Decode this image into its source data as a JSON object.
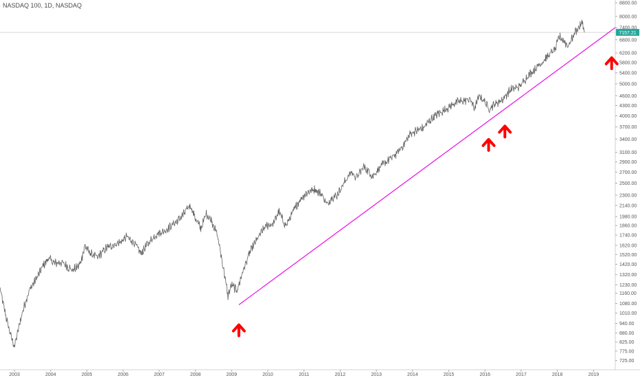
{
  "chart_data": {
    "type": "line",
    "title": "NASDAQ 100, 1D, NASDAQ",
    "y_scale": "log",
    "ylim": [
      700,
      8800
    ],
    "xlim": [
      2002.6,
      2019.6
    ],
    "grid": false,
    "x_ticks": [
      "2003",
      "2004",
      "2005",
      "2006",
      "2007",
      "2008",
      "2009",
      "2010",
      "2011",
      "2012",
      "2013",
      "2014",
      "2015",
      "2016",
      "2017",
      "2018",
      "2019"
    ],
    "y_ticks": [
      "8800.00",
      "8000.00",
      "7400.00",
      "6800.00",
      "6200.00",
      "5800.00",
      "5400.00",
      "5000.00",
      "4600.00",
      "4300.00",
      "4000.00",
      "3700.00",
      "3400.00",
      "3100.00",
      "2900.00",
      "2700.00",
      "2500.00",
      "2300.00",
      "2140.00",
      "1980.00",
      "1860.00",
      "1740.00",
      "1620.00",
      "1520.00",
      "1420.00",
      "1320.00",
      "1230.00",
      "1160.00",
      "1080.00",
      "1010.00",
      "940.00",
      "880.00",
      "825.00",
      "775.00",
      "725.00"
    ],
    "current_price_label": "7157.21",
    "current_price": 7157.21,
    "series": [
      {
        "x": [
          2002.6,
          2002.75,
          2002.9,
          2003.0,
          2003.2,
          2003.4,
          2003.6,
          2003.8,
          2003.95,
          2004.1,
          2004.3,
          2004.5,
          2004.6,
          2004.8,
          2004.95,
          2005.1,
          2005.3,
          2005.5,
          2005.7,
          2005.95,
          2006.1,
          2006.3,
          2006.5,
          2006.7,
          2006.95,
          2007.15,
          2007.4,
          2007.55,
          2007.7,
          2007.85,
          2008.0,
          2008.15,
          2008.3,
          2008.45,
          2008.6,
          2008.75,
          2008.9,
          2009.0,
          2009.15,
          2009.3,
          2009.5,
          2009.7,
          2009.95,
          2010.15,
          2010.3,
          2010.5,
          2010.6,
          2010.75,
          2010.9,
          2011.1,
          2011.3,
          2011.5,
          2011.65,
          2011.75,
          2011.9,
          2012.1,
          2012.3,
          2012.45,
          2012.65,
          2012.8,
          2012.9,
          2013.1,
          2013.3,
          2013.5,
          2013.7,
          2013.95,
          2014.1,
          2014.3,
          2014.5,
          2014.7,
          2014.95,
          2015.2,
          2015.45,
          2015.6,
          2015.7,
          2015.85,
          2016.0,
          2016.1,
          2016.3,
          2016.5,
          2016.7,
          2016.95,
          2017.2,
          2017.5,
          2017.7,
          2017.95,
          2018.05,
          2018.15,
          2018.3,
          2018.5,
          2018.7,
          2018.75
        ],
        "values": [
          1200,
          1000,
          860,
          800,
          1000,
          1180,
          1280,
          1410,
          1480,
          1430,
          1440,
          1390,
          1360,
          1410,
          1610,
          1530,
          1490,
          1580,
          1620,
          1660,
          1720,
          1650,
          1530,
          1650,
          1760,
          1790,
          1880,
          1940,
          2030,
          2150,
          1960,
          1820,
          2020,
          1920,
          1750,
          1430,
          1140,
          1230,
          1180,
          1340,
          1540,
          1690,
          1860,
          1880,
          2050,
          1850,
          1950,
          2100,
          2240,
          2350,
          2400,
          2300,
          2140,
          2260,
          2290,
          2500,
          2700,
          2600,
          2800,
          2700,
          2620,
          2800,
          2920,
          3030,
          3200,
          3540,
          3600,
          3680,
          3900,
          4050,
          4200,
          4400,
          4450,
          4500,
          4200,
          4600,
          4400,
          4200,
          4350,
          4500,
          4800,
          4900,
          5300,
          5700,
          6000,
          6400,
          6950,
          6800,
          6500,
          7200,
          7650,
          7157
        ]
      }
    ],
    "trendline": {
      "start": {
        "x": 2009.2,
        "y": 1070
      },
      "end": {
        "x": 2019.6,
        "y": 7400
      }
    },
    "annotations": [
      {
        "type": "up-arrow",
        "x": 2009.2,
        "y": 900
      },
      {
        "type": "up-arrow",
        "x": 2016.1,
        "y": 3280
      },
      {
        "type": "up-arrow",
        "x": 2016.55,
        "y": 3600
      },
      {
        "type": "up-arrow",
        "x": 2019.5,
        "y": 5800
      }
    ],
    "colors": {
      "price": "#5f5f5f",
      "trendline": "#e61de6",
      "arrow": "#ff0000",
      "price_tag": "#26a69a",
      "price_line": "#c8c8c8"
    }
  }
}
